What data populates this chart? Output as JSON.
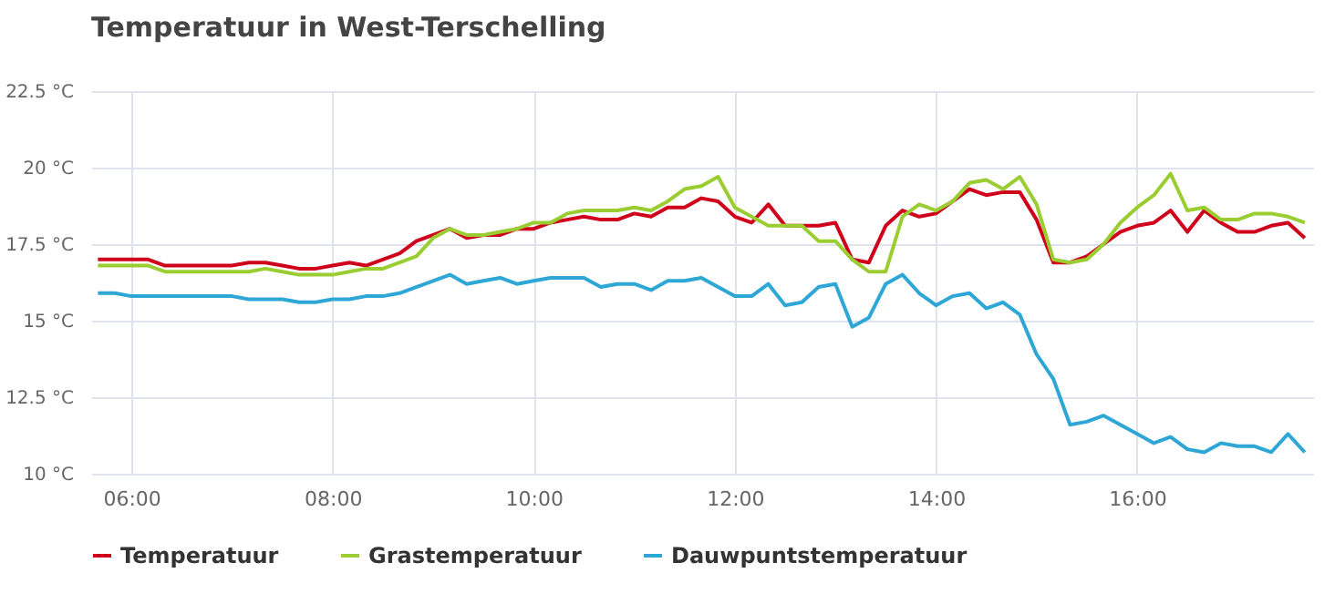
{
  "chart_data": {
    "type": "line",
    "title": "Temperatuur in West-Terschelling",
    "x": [
      5.667,
      5.833,
      6.0,
      6.167,
      6.333,
      6.5,
      6.667,
      6.833,
      7.0,
      7.167,
      7.333,
      7.5,
      7.667,
      7.833,
      8.0,
      8.167,
      8.333,
      8.5,
      8.667,
      8.833,
      9.0,
      9.167,
      9.333,
      9.5,
      9.667,
      9.833,
      10.0,
      10.167,
      10.333,
      10.5,
      10.667,
      10.833,
      11.0,
      11.167,
      11.333,
      11.5,
      11.667,
      11.833,
      12.0,
      12.167,
      12.333,
      12.5,
      12.667,
      12.833,
      13.0,
      13.167,
      13.333,
      13.5,
      13.667,
      13.833,
      14.0,
      14.167,
      14.333,
      14.5,
      14.667,
      14.833,
      15.0,
      15.167,
      15.333,
      15.5,
      15.667,
      15.833,
      16.0,
      16.167,
      16.333,
      16.5,
      16.667,
      16.833,
      17.0,
      17.167,
      17.333,
      17.5,
      17.667
    ],
    "series": [
      {
        "name": "Temperatuur",
        "color": "#d0021b",
        "values": [
          17.0,
          17.0,
          17.0,
          17.0,
          16.8,
          16.8,
          16.8,
          16.8,
          16.8,
          16.9,
          16.9,
          16.8,
          16.7,
          16.7,
          16.8,
          16.9,
          16.8,
          17.0,
          17.2,
          17.6,
          17.8,
          18.0,
          17.7,
          17.8,
          17.8,
          18.0,
          18.0,
          18.2,
          18.3,
          18.4,
          18.3,
          18.3,
          18.5,
          18.4,
          18.7,
          18.7,
          19.0,
          18.9,
          18.4,
          18.2,
          18.8,
          18.1,
          18.1,
          18.1,
          18.2,
          17.0,
          16.9,
          18.1,
          18.6,
          18.4,
          18.5,
          18.9,
          19.3,
          19.1,
          19.2,
          19.2,
          18.3,
          16.9,
          16.9,
          17.1,
          17.5,
          17.9,
          18.1,
          18.2,
          18.6,
          17.9,
          18.6,
          18.2,
          17.9,
          17.9,
          18.1,
          18.2,
          17.7
        ]
      },
      {
        "name": "Grastemperatuur",
        "color": "#9acd32",
        "values": [
          16.8,
          16.8,
          16.8,
          16.8,
          16.6,
          16.6,
          16.6,
          16.6,
          16.6,
          16.6,
          16.7,
          16.6,
          16.5,
          16.5,
          16.5,
          16.6,
          16.7,
          16.7,
          16.9,
          17.1,
          17.7,
          18.0,
          17.8,
          17.8,
          17.9,
          18.0,
          18.2,
          18.2,
          18.5,
          18.6,
          18.6,
          18.6,
          18.7,
          18.6,
          18.9,
          19.3,
          19.4,
          19.7,
          18.7,
          18.4,
          18.1,
          18.1,
          18.1,
          17.6,
          17.6,
          17.0,
          16.6,
          16.6,
          18.4,
          18.8,
          18.6,
          18.9,
          19.5,
          19.6,
          19.3,
          19.7,
          18.8,
          17.0,
          16.9,
          17.0,
          17.5,
          18.2,
          18.7,
          19.1,
          19.8,
          18.6,
          18.7,
          18.3,
          18.3,
          18.5,
          18.5,
          18.4,
          18.2
        ]
      },
      {
        "name": "Dauwpuntstemperatuur",
        "color": "#2ea7d6",
        "values": [
          15.9,
          15.9,
          15.8,
          15.8,
          15.8,
          15.8,
          15.8,
          15.8,
          15.8,
          15.7,
          15.7,
          15.7,
          15.6,
          15.6,
          15.7,
          15.7,
          15.8,
          15.8,
          15.9,
          16.1,
          16.3,
          16.5,
          16.2,
          16.3,
          16.4,
          16.2,
          16.3,
          16.4,
          16.4,
          16.4,
          16.1,
          16.2,
          16.2,
          16.0,
          16.3,
          16.3,
          16.4,
          16.1,
          15.8,
          15.8,
          16.2,
          15.5,
          15.6,
          16.1,
          16.2,
          14.8,
          15.1,
          16.2,
          16.5,
          15.9,
          15.5,
          15.8,
          15.9,
          15.4,
          15.6,
          15.2,
          13.9,
          13.1,
          11.6,
          11.7,
          11.9,
          11.6,
          11.3,
          11.0,
          11.2,
          10.8,
          10.7,
          11.0,
          10.9,
          10.9,
          10.7,
          11.3,
          10.7
        ]
      }
    ],
    "xlim": [
      5.6,
      17.75
    ],
    "xticks": [
      {
        "value": 6,
        "label": "06:00"
      },
      {
        "value": 8,
        "label": "08:00"
      },
      {
        "value": 10,
        "label": "10:00"
      },
      {
        "value": 12,
        "label": "12:00"
      },
      {
        "value": 14,
        "label": "14:00"
      },
      {
        "value": 16,
        "label": "16:00"
      }
    ],
    "ylim": [
      10,
      22.5
    ],
    "yticks": [
      {
        "value": 10,
        "label": "10 °C"
      },
      {
        "value": 12.5,
        "label": "12.5 °C"
      },
      {
        "value": 15,
        "label": "15 °C"
      },
      {
        "value": 17.5,
        "label": "17.5 °C"
      },
      {
        "value": 20,
        "label": "20 °C"
      },
      {
        "value": 22.5,
        "label": "22.5 °C"
      }
    ],
    "grid": true,
    "legend": "bottom",
    "line_style": "solid",
    "marker": "none"
  }
}
